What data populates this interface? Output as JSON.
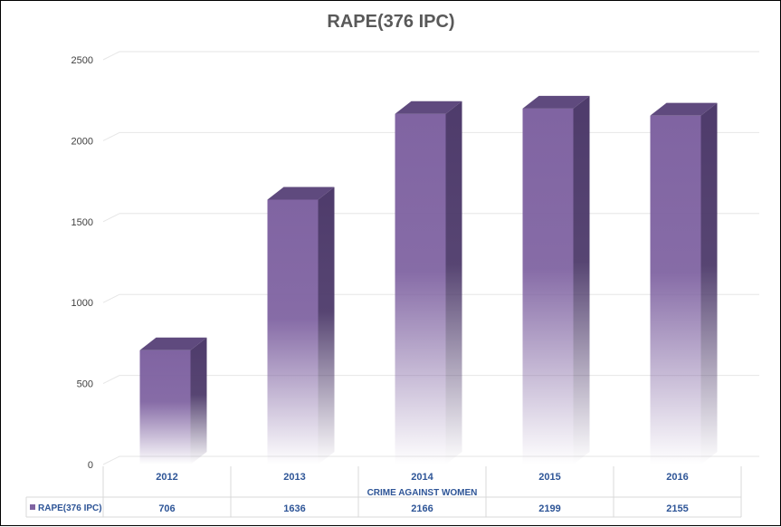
{
  "chart_data": {
    "type": "bar",
    "title": "RAPE(376 IPC)",
    "xlabel": "CRIME AGAINST WOMEN",
    "ylabel": "",
    "categories": [
      "2012",
      "2013",
      "2014",
      "2015",
      "2016"
    ],
    "series": [
      {
        "name": "RAPE(376 IPC)",
        "values": [
          706,
          1636,
          2166,
          2199,
          2155
        ]
      }
    ],
    "value_labels": [
      "706",
      "1636",
      "2166",
      "2199",
      "2155"
    ],
    "ylim": [
      0,
      2500
    ],
    "yticks": [
      "0",
      "500",
      "1000",
      "1500",
      "2000",
      "2500"
    ],
    "grid": true,
    "legend": "data-table",
    "colors": {
      "bar_front": "#8064a2",
      "bar_side": "#4e3b6b",
      "bar_top": "#5f4a7e",
      "text_blue": "#2e5597"
    }
  }
}
